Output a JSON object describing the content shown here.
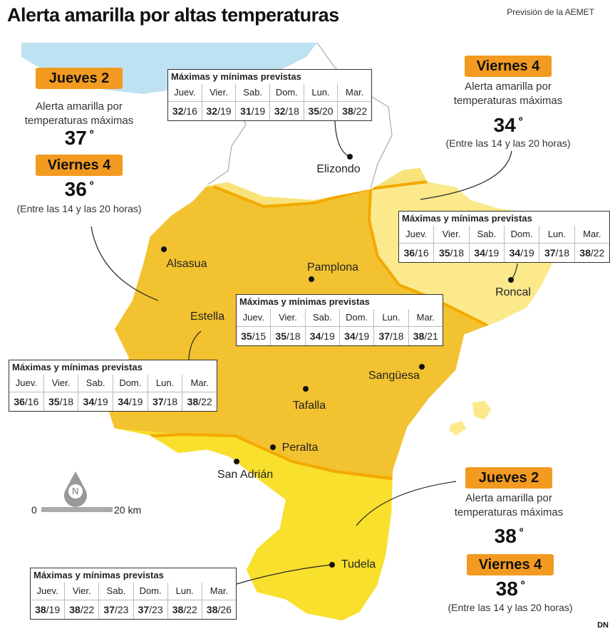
{
  "header": {
    "title": "Alerta amarilla por altas temperaturas",
    "source": "Previsión de la AEMET",
    "logo": "DN"
  },
  "legend": {
    "north": "N",
    "scale_start": "0",
    "scale_end": "20 km"
  },
  "places": [
    "Elizondo",
    "Alsasua",
    "Pamplona",
    "Roncal",
    "Estella",
    "Sangüesa",
    "Tafalla",
    "Peralta",
    "San Adrián",
    "Tudela"
  ],
  "alerts": [
    {
      "items": [
        {
          "day": "Jueves 2",
          "text": "Alerta amarilla por temperaturas máximas",
          "temp": "37",
          "unit": "º"
        },
        {
          "day": "Viernes 4",
          "temp": "36",
          "unit": "º",
          "note": "(Entre las 14 y las 20 horas)"
        }
      ]
    },
    {
      "items": [
        {
          "day": "Viernes 4",
          "text": "Alerta amarilla por temperaturas máximas",
          "temp": "34",
          "unit": "º",
          "note": "(Entre las 14 y las 20 horas)"
        }
      ]
    },
    {
      "items": [
        {
          "day": "Jueves 2",
          "text": "Alerta amarilla por temperaturas máximas",
          "temp": "38",
          "unit": "º"
        },
        {
          "day": "Viernes 4",
          "temp": "38",
          "unit": "º",
          "note": "(Entre las 14 y las 20 horas)"
        }
      ]
    }
  ],
  "tables": [
    {
      "title": "Máximas y mínimas previstas",
      "days": [
        "Juev.",
        "Vier.",
        "Sab.",
        "Dom.",
        "Lun.",
        "Mar."
      ],
      "separator": "/",
      "values": [
        {
          "max": "32",
          "min": "16"
        },
        {
          "max": "32",
          "min": "19"
        },
        {
          "max": "31",
          "min": "19"
        },
        {
          "max": "32",
          "min": "18"
        },
        {
          "max": "35",
          "min": "20"
        },
        {
          "max": "38",
          "min": "22"
        }
      ]
    },
    {
      "title": "Máximas y mínimas previstas",
      "days": [
        "Juev.",
        "Vier.",
        "Sab.",
        "Dom.",
        "Lun.",
        "Mar."
      ],
      "separator": "/",
      "values": [
        {
          "max": "36",
          "min": "16"
        },
        {
          "max": "35",
          "min": "18"
        },
        {
          "max": "34",
          "min": "19"
        },
        {
          "max": "34",
          "min": "19"
        },
        {
          "max": "37",
          "min": "18"
        },
        {
          "max": "38",
          "min": "22"
        }
      ]
    },
    {
      "title": "Máximas y mínimas previstas",
      "days": [
        "Juev.",
        "Vier.",
        "Sab.",
        "Dom.",
        "Lun.",
        "Mar."
      ],
      "separator": "/",
      "values": [
        {
          "max": "35",
          "min": "15"
        },
        {
          "max": "35",
          "min": "18"
        },
        {
          "max": "34",
          "min": "19"
        },
        {
          "max": "34",
          "min": "19"
        },
        {
          "max": "37",
          "min": "18"
        },
        {
          "max": "38",
          "min": "21"
        }
      ]
    },
    {
      "title": "Máximas y mínimas previstas",
      "days": [
        "Juev.",
        "Vier.",
        "Sab.",
        "Dom.",
        "Lun.",
        "Mar."
      ],
      "separator": "/",
      "values": [
        {
          "max": "36",
          "min": "16"
        },
        {
          "max": "35",
          "min": "18"
        },
        {
          "max": "34",
          "min": "19"
        },
        {
          "max": "34",
          "min": "19"
        },
        {
          "max": "37",
          "min": "18"
        },
        {
          "max": "38",
          "min": "22"
        }
      ]
    },
    {
      "title": "Máximas y mínimas previstas",
      "days": [
        "Juev.",
        "Vier.",
        "Sab.",
        "Dom.",
        "Lun.",
        "Mar."
      ],
      "separator": "/",
      "values": [
        {
          "max": "38",
          "min": "19"
        },
        {
          "max": "38",
          "min": "22"
        },
        {
          "max": "37",
          "min": "23"
        },
        {
          "max": "37",
          "min": "23"
        },
        {
          "max": "38",
          "min": "22"
        },
        {
          "max": "38",
          "min": "26"
        }
      ]
    }
  ]
}
